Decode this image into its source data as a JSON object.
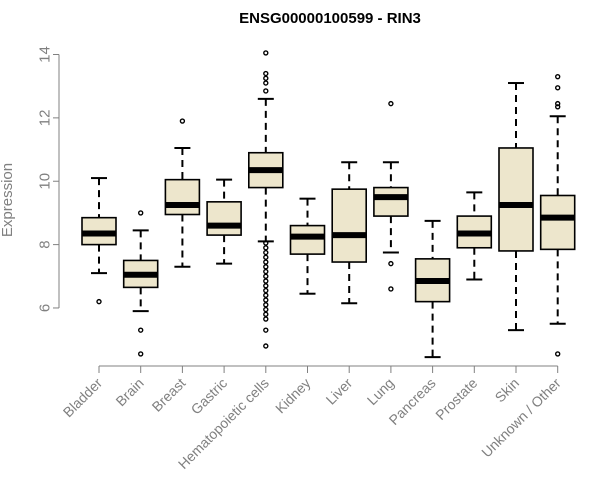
{
  "chart_data": {
    "type": "boxplot",
    "title": "ENSG00000100599 - RIN3",
    "ylabel": "Expression",
    "xlabel": "",
    "ylim": [
      4.2,
      14.3
    ],
    "yticks": [
      6,
      8,
      10,
      12,
      14
    ],
    "grid": false,
    "colors": {
      "box_fill": "#ede6cc",
      "box_stroke": "#000000",
      "median": "#000000",
      "axis": "#808080",
      "label": "#808080",
      "title": "#000000"
    },
    "categories": [
      "Bladder",
      "Brain",
      "Breast",
      "Gastric",
      "Hematopoietic cells",
      "Kidney",
      "Liver",
      "Lung",
      "Pancreas",
      "Prostate",
      "Skin",
      "Unknown / Other"
    ],
    "boxes": [
      {
        "category": "Bladder",
        "whisker_low": 7.1,
        "q1": 8.0,
        "median": 8.35,
        "q3": 8.85,
        "whisker_high": 10.1,
        "outliers": [
          6.2
        ]
      },
      {
        "category": "Brain",
        "whisker_low": 5.9,
        "q1": 6.65,
        "median": 7.05,
        "q3": 7.5,
        "whisker_high": 8.45,
        "outliers": [
          9.0,
          5.3,
          4.55
        ]
      },
      {
        "category": "Breast",
        "whisker_low": 7.3,
        "q1": 8.95,
        "median": 9.25,
        "q3": 10.05,
        "whisker_high": 11.05,
        "outliers": [
          11.9
        ]
      },
      {
        "category": "Gastric",
        "whisker_low": 7.4,
        "q1": 8.3,
        "median": 8.6,
        "q3": 9.35,
        "whisker_high": 10.05,
        "outliers": []
      },
      {
        "category": "Hematopoietic cells",
        "whisker_low": 8.1,
        "q1": 9.8,
        "median": 10.35,
        "q3": 10.9,
        "whisker_high": 12.6,
        "outliers": [
          14.05,
          13.4,
          13.25,
          13.1,
          12.85,
          8.05,
          7.9,
          7.75,
          7.6,
          7.45,
          7.3,
          7.15,
          7.0,
          6.85,
          6.7,
          6.55,
          6.4,
          6.25,
          6.1,
          5.95,
          5.8,
          5.65,
          5.3,
          4.8
        ]
      },
      {
        "category": "Kidney",
        "whisker_low": 6.45,
        "q1": 7.7,
        "median": 8.25,
        "q3": 8.6,
        "whisker_high": 9.45,
        "outliers": []
      },
      {
        "category": "Liver",
        "whisker_low": 6.15,
        "q1": 7.45,
        "median": 8.3,
        "q3": 9.75,
        "whisker_high": 10.6,
        "outliers": []
      },
      {
        "category": "Lung",
        "whisker_low": 7.75,
        "q1": 8.9,
        "median": 9.5,
        "q3": 9.8,
        "whisker_high": 10.6,
        "outliers": [
          12.45,
          7.4,
          6.6
        ]
      },
      {
        "category": "Pancreas",
        "whisker_low": 4.45,
        "q1": 6.2,
        "median": 6.85,
        "q3": 7.55,
        "whisker_high": 8.75,
        "outliers": []
      },
      {
        "category": "Prostate",
        "whisker_low": 6.9,
        "q1": 7.9,
        "median": 8.35,
        "q3": 8.9,
        "whisker_high": 9.65,
        "outliers": []
      },
      {
        "category": "Skin",
        "whisker_low": 5.3,
        "q1": 7.8,
        "median": 9.25,
        "q3": 11.05,
        "whisker_high": 13.1,
        "outliers": []
      },
      {
        "category": "Unknown / Other",
        "whisker_low": 5.5,
        "q1": 7.85,
        "median": 8.85,
        "q3": 9.55,
        "whisker_high": 12.05,
        "outliers": [
          13.3,
          12.95,
          12.45,
          12.35,
          4.55
        ]
      }
    ]
  }
}
